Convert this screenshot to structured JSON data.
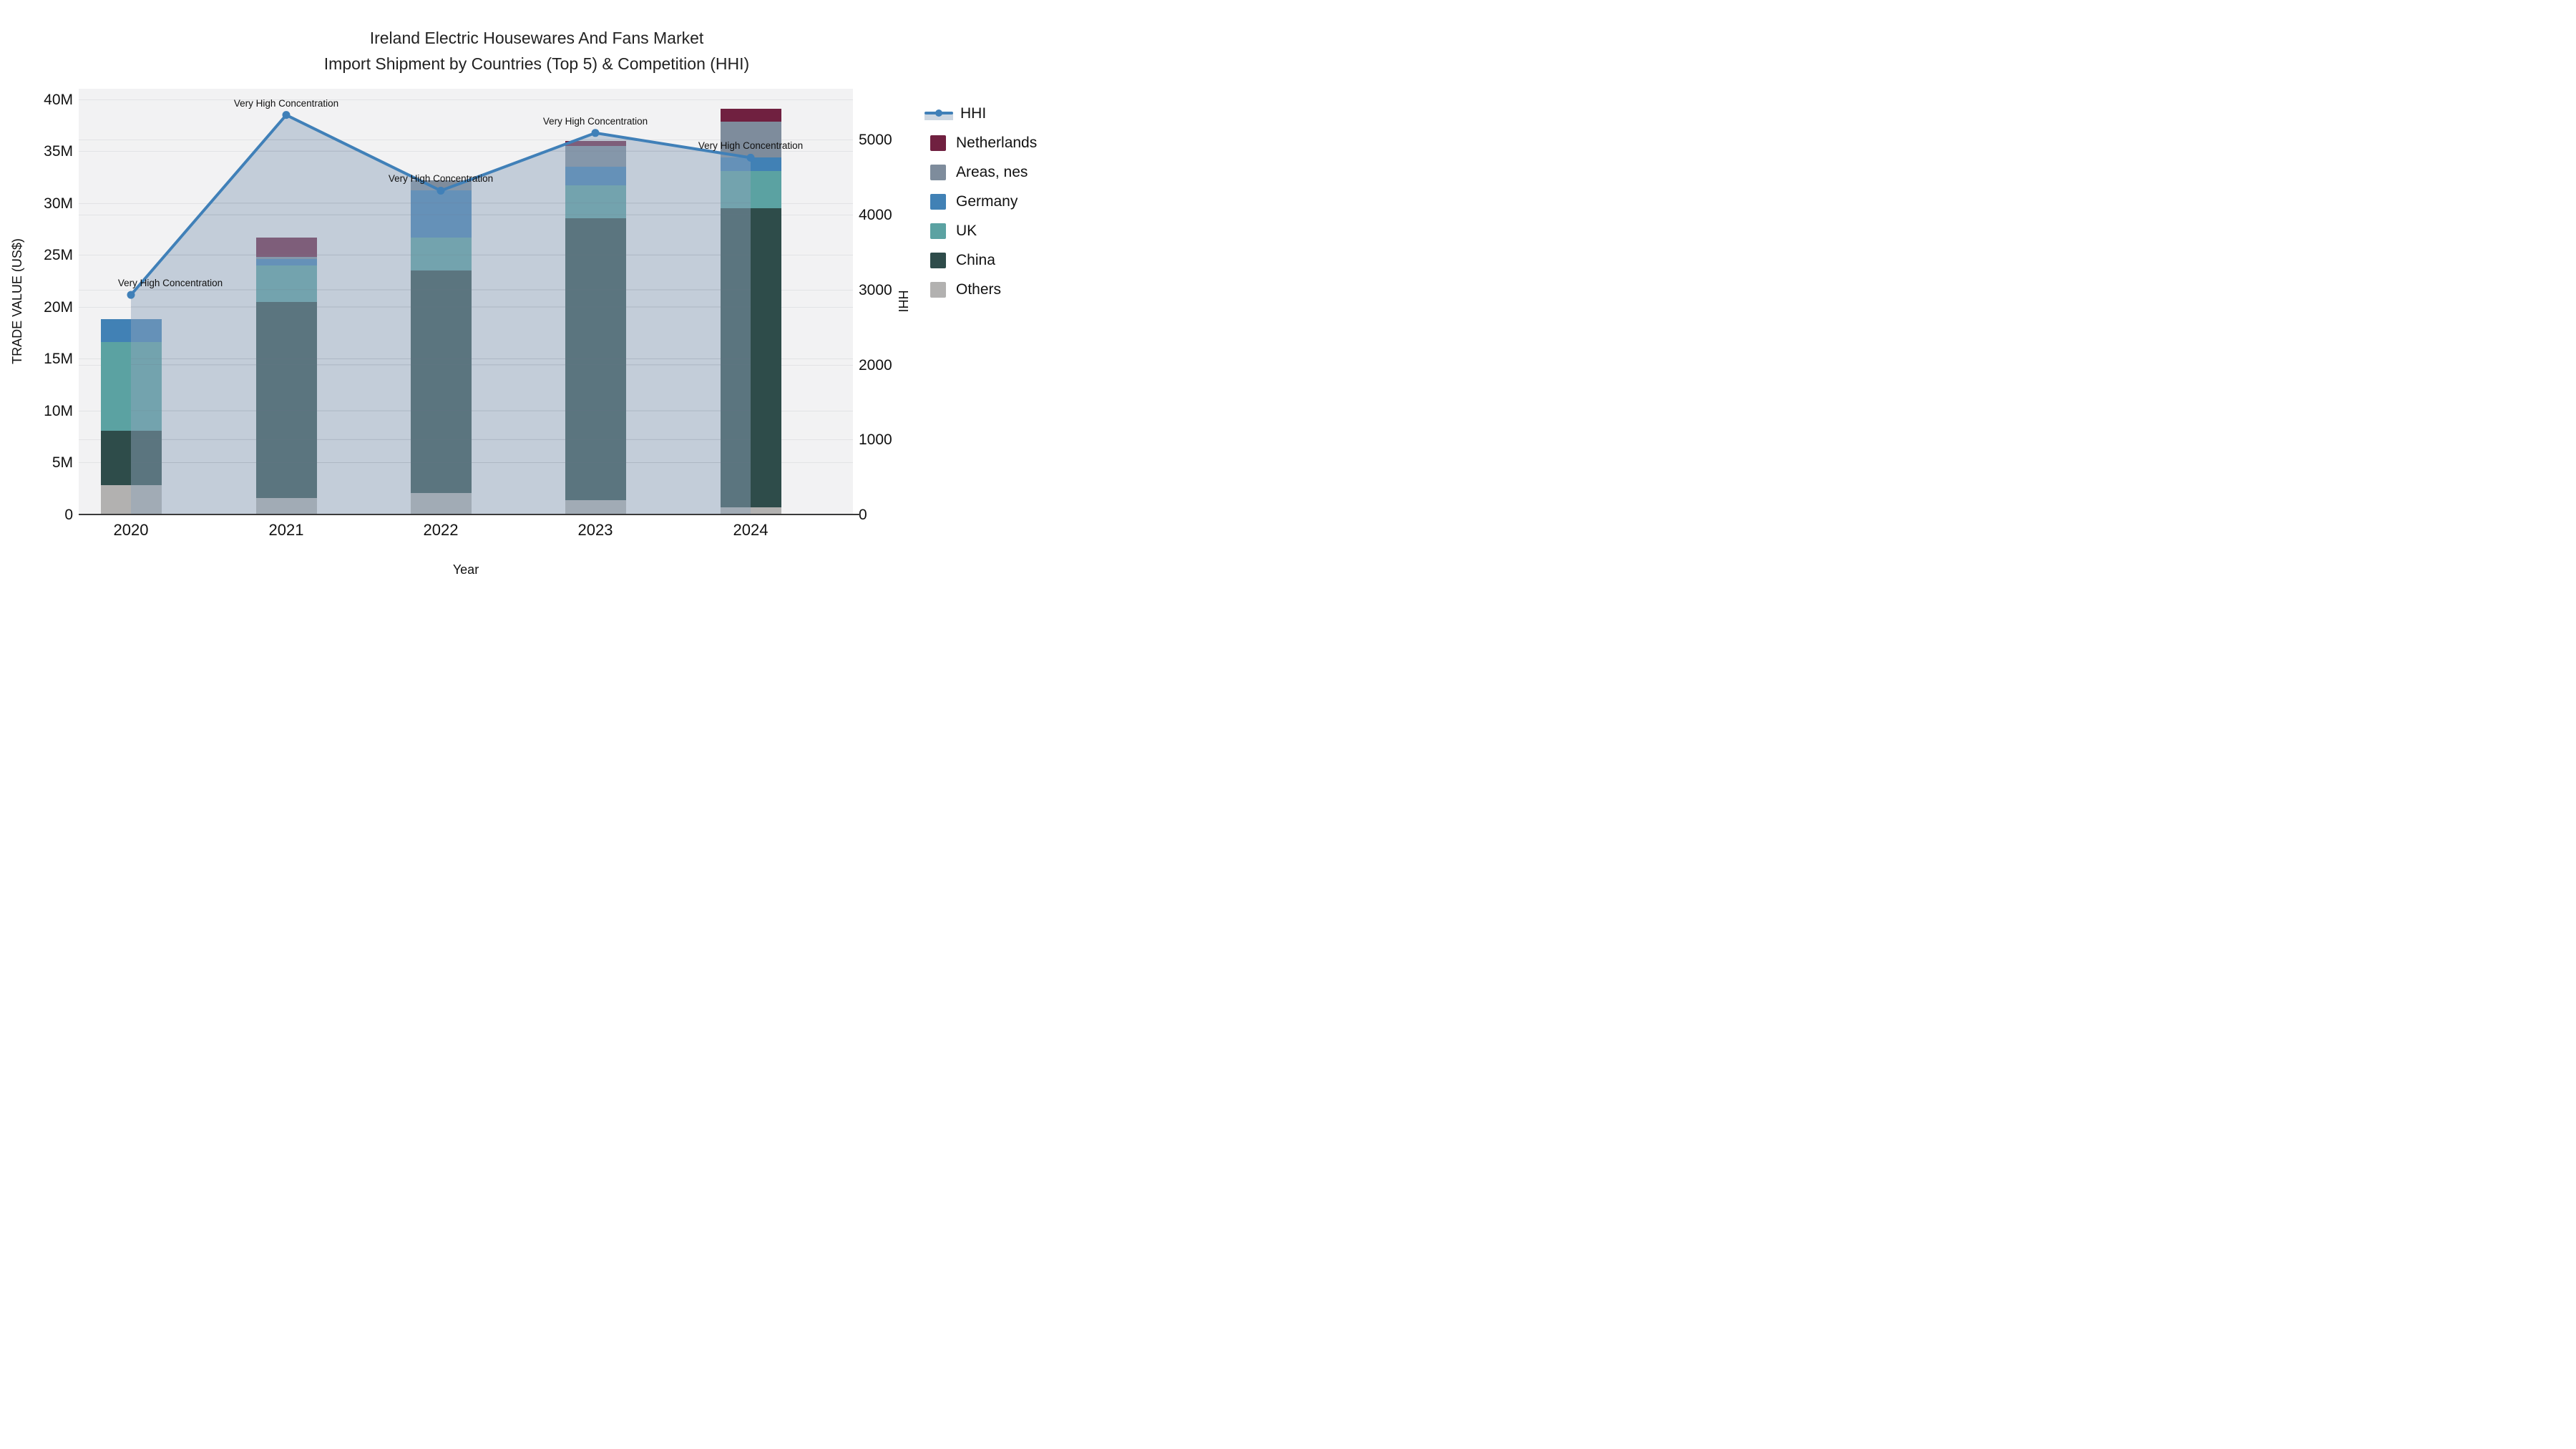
{
  "title": {
    "line1": "Ireland Electric Housewares And Fans Market",
    "line2": "Import Shipment by Countries (Top 5) & Competition (HHI)"
  },
  "axes": {
    "y_left_title": "TRADE VALUE (US$)",
    "y_right_title": "HHI",
    "x_title": "Year",
    "y_left_ticks": [
      "0",
      "5M",
      "10M",
      "15M",
      "20M",
      "25M",
      "30M",
      "35M",
      "40M"
    ],
    "y_right_ticks": [
      "0",
      "1000",
      "2000",
      "3000",
      "4000",
      "5000"
    ],
    "x_ticks": [
      "2020",
      "2021",
      "2022",
      "2023",
      "2024"
    ]
  },
  "legend": {
    "items": [
      {
        "label": "HHI",
        "type": "line",
        "color": "#4080b8"
      },
      {
        "label": "Netherlands",
        "type": "square",
        "color": "#702040"
      },
      {
        "label": "Areas, nes",
        "type": "square",
        "color": "#7e8c9c"
      },
      {
        "label": "Germany",
        "type": "square",
        "color": "#4181b5"
      },
      {
        "label": "UK",
        "type": "square",
        "color": "#5ba2a2"
      },
      {
        "label": "China",
        "type": "square",
        "color": "#2e4c4a"
      },
      {
        "label": "Others",
        "type": "square",
        "color": "#b2b1b0"
      }
    ]
  },
  "annotation_label": "Very High Concentration",
  "chart_data": {
    "type": "bar",
    "subtype": "stacked-bars-with-line-overlay",
    "categories": [
      "2020",
      "2021",
      "2022",
      "2023",
      "2024"
    ],
    "value_unit": "million US$",
    "series": [
      {
        "name": "Others",
        "color": "#b2b1b0",
        "values": [
          2.8,
          1.6,
          2.1,
          1.4,
          0.7
        ]
      },
      {
        "name": "China",
        "color": "#2e4c4a",
        "values": [
          5.3,
          18.9,
          21.4,
          27.1,
          28.8
        ]
      },
      {
        "name": "UK",
        "color": "#5ba2a2",
        "values": [
          8.5,
          3.5,
          3.2,
          3.2,
          3.6
        ]
      },
      {
        "name": "Germany",
        "color": "#4181b5",
        "values": [
          2.2,
          0.6,
          4.5,
          1.8,
          1.3
        ]
      },
      {
        "name": "Areas, nes",
        "color": "#7e8c9c",
        "values": [
          0,
          0.2,
          1.0,
          2.0,
          3.4
        ]
      },
      {
        "name": "Netherlands",
        "color": "#702040",
        "values": [
          0,
          1.9,
          0,
          0.5,
          1.3
        ]
      }
    ],
    "bar_totals": [
      18.8,
      26.7,
      32.2,
      36.0,
      39.1
    ],
    "line_series": {
      "name": "HHI",
      "color": "#4080b8",
      "fill_color": "rgba(143,163,188,0.47)",
      "values": [
        2930,
        5330,
        4320,
        5090,
        4760
      ],
      "annotations": [
        "Very High Concentration",
        "Very High Concentration",
        "Very High Concentration",
        "Very High Concentration",
        "Very High Concentration"
      ]
    },
    "xlabel": "Year",
    "ylabel": "TRADE VALUE (US$)",
    "ylabel_right": "HHI",
    "ylim_left": [
      0,
      41000000
    ],
    "ylim_right": [
      0,
      5680
    ],
    "grid": true,
    "legend_position": "right",
    "plot_bg": "#f2f2f3"
  }
}
